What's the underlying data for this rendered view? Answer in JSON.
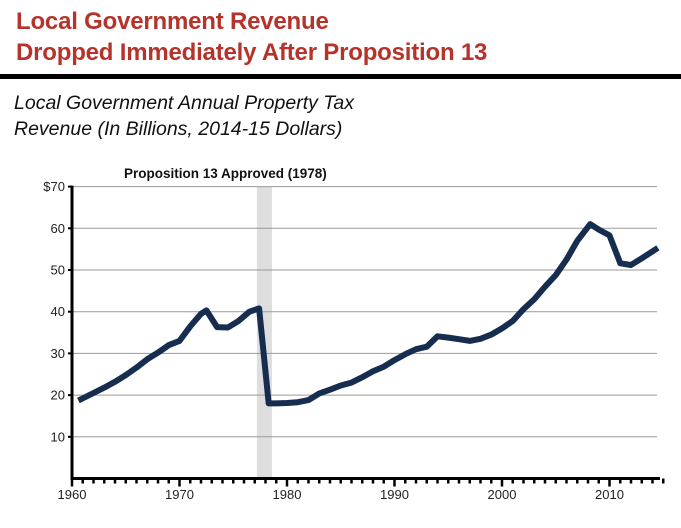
{
  "header": {
    "title_line1": "Local Government Revenue",
    "title_line2": "Dropped Immediately After Proposition 13",
    "subtitle_line1": "Local Government Annual Property Tax",
    "subtitle_line2": "Revenue (In Billions, 2014-15 Dollars)"
  },
  "colors": {
    "title": "#b5332a",
    "line": "#162d4f",
    "band": "#dedede",
    "grid": "#9a9a9a"
  },
  "chart_data": {
    "type": "line",
    "title": "Local Government Annual Property Tax Revenue (In Billions, 2014-15 Dollars)",
    "xlabel": "",
    "ylabel": "",
    "xlim": [
      1960,
      2015
    ],
    "ylim": [
      0,
      70
    ],
    "grid": true,
    "legend": "none",
    "x_ticks": [
      1960,
      1970,
      1980,
      1990,
      2000,
      2010
    ],
    "x_tick_labels": [
      "1960",
      "1970",
      "1980",
      "1990",
      "2000",
      "2010"
    ],
    "y_ticks": [
      10,
      20,
      30,
      40,
      50,
      60,
      70
    ],
    "y_tick_labels": [
      "10",
      "20",
      "30",
      "40",
      "50",
      "60",
      "$70"
    ],
    "annotations": [
      {
        "text": "Proposition 13 Approved (1978)",
        "shaded_band_years": [
          1977.2,
          1978.6
        ]
      }
    ],
    "series": [
      {
        "name": "Property Tax Revenue",
        "x": [
          1960.6,
          1962,
          1963,
          1964,
          1965,
          1966,
          1967,
          1968,
          1969,
          1970,
          1971,
          1972,
          1972.5,
          1973.5,
          1974.5,
          1975.5,
          1976.5,
          1977.4,
          1978.3,
          1979,
          1980,
          1981,
          1982,
          1983,
          1984,
          1985,
          1986,
          1987,
          1988,
          1989,
          1990,
          1991,
          1992,
          1993,
          1994,
          1995,
          1996,
          1997,
          1998,
          1999,
          2000,
          2001,
          2002,
          2003,
          2004,
          2005,
          2006,
          2007,
          2008.2,
          2009,
          2010,
          2011,
          2012,
          2013,
          2014.5
        ],
        "values": [
          18.7,
          20.5,
          21.8,
          23.2,
          24.8,
          26.6,
          28.6,
          30.2,
          32.0,
          33.0,
          36.5,
          39.5,
          40.3,
          36.3,
          36.2,
          37.8,
          40.0,
          40.8,
          18.0,
          18.0,
          18.1,
          18.3,
          18.8,
          20.4,
          21.3,
          22.3,
          23.0,
          24.3,
          25.7,
          26.8,
          28.4,
          29.8,
          31.0,
          31.6,
          34.1,
          33.8,
          33.4,
          33.0,
          33.5,
          34.5,
          36.0,
          37.8,
          40.6,
          43.0,
          46.0,
          48.8,
          52.5,
          57.0,
          61.0,
          59.7,
          58.3,
          51.6,
          51.2,
          52.8,
          55.3
        ]
      }
    ]
  }
}
